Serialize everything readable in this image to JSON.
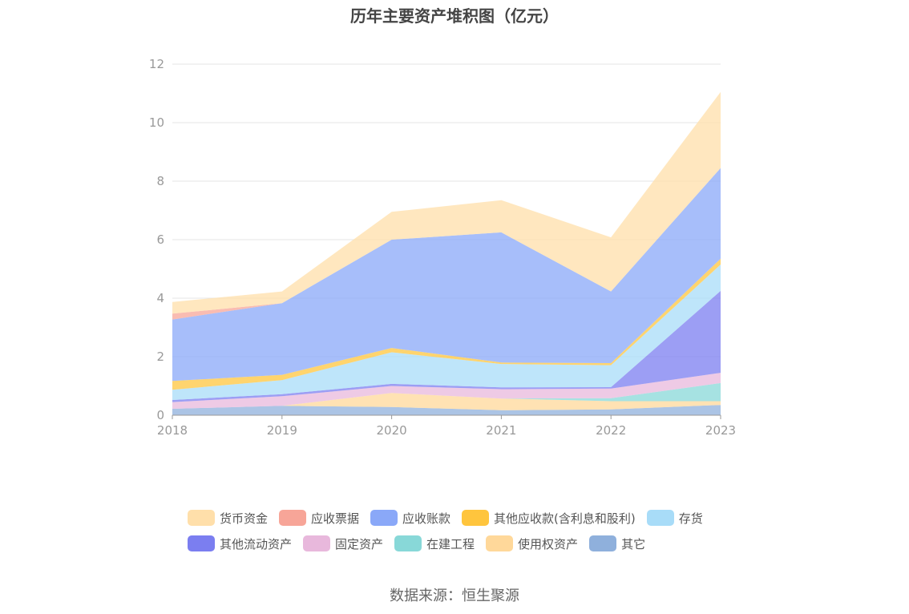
{
  "chart_data": {
    "type": "area",
    "stacked": true,
    "title": "历年主要资产堆积图（亿元）",
    "x": [
      "2018",
      "2019",
      "2020",
      "2021",
      "2022",
      "2023"
    ],
    "ylim": [
      0,
      12
    ],
    "yticks": [
      "0",
      "2",
      "4",
      "6",
      "8",
      "10",
      "12"
    ],
    "grid": true,
    "legend_position": "bottom",
    "series": [
      {
        "name": "其它",
        "color": "#8fb0dc",
        "values": [
          0.22,
          0.32,
          0.28,
          0.17,
          0.2,
          0.35
        ]
      },
      {
        "name": "使用权资产",
        "color": "#ffd89a",
        "values": [
          0.0,
          0.0,
          0.48,
          0.4,
          0.28,
          0.13
        ]
      },
      {
        "name": "在建工程",
        "color": "#88d8d8",
        "values": [
          0.0,
          0.0,
          0.0,
          0.0,
          0.1,
          0.62
        ]
      },
      {
        "name": "固定资产",
        "color": "#e8b8dc",
        "values": [
          0.23,
          0.33,
          0.24,
          0.32,
          0.33,
          0.35
        ]
      },
      {
        "name": "其他流动资产",
        "color": "#7b7ef0",
        "values": [
          0.07,
          0.07,
          0.07,
          0.06,
          0.05,
          2.8
        ]
      },
      {
        "name": "存货",
        "color": "#a8dcf8",
        "values": [
          0.35,
          0.48,
          1.08,
          0.8,
          0.75,
          0.9
        ]
      },
      {
        "name": "其他应收款(含利息和股利)",
        "color": "#ffc53d",
        "values": [
          0.3,
          0.18,
          0.15,
          0.05,
          0.07,
          0.2
        ]
      },
      {
        "name": "应收账款",
        "color": "#8aa8f8",
        "values": [
          2.1,
          2.45,
          3.7,
          4.45,
          2.45,
          3.1
        ]
      },
      {
        "name": "应收票据",
        "color": "#f7a598",
        "values": [
          0.2,
          0.0,
          0.0,
          0.0,
          0.0,
          0.0
        ]
      },
      {
        "name": "货币资金",
        "color": "#ffdfaa",
        "values": [
          0.4,
          0.4,
          0.95,
          1.1,
          1.85,
          2.6
        ]
      }
    ]
  },
  "legend": {
    "rows": [
      [
        {
          "label": "货币资金",
          "color": "#ffdfaa"
        },
        {
          "label": "应收票据",
          "color": "#f7a598"
        },
        {
          "label": "应收账款",
          "color": "#8aa8f8"
        },
        {
          "label": "其他应收款(含利息和股利)",
          "color": "#ffc53d"
        },
        {
          "label": "存货",
          "color": "#a8dcf8"
        }
      ],
      [
        {
          "label": "其他流动资产",
          "color": "#7b7ef0"
        },
        {
          "label": "固定资产",
          "color": "#e8b8dc"
        },
        {
          "label": "在建工程",
          "color": "#88d8d8"
        },
        {
          "label": "使用权资产",
          "color": "#ffd89a"
        },
        {
          "label": "其它",
          "color": "#8fb0dc"
        }
      ]
    ]
  },
  "source": "数据来源：恒生聚源"
}
